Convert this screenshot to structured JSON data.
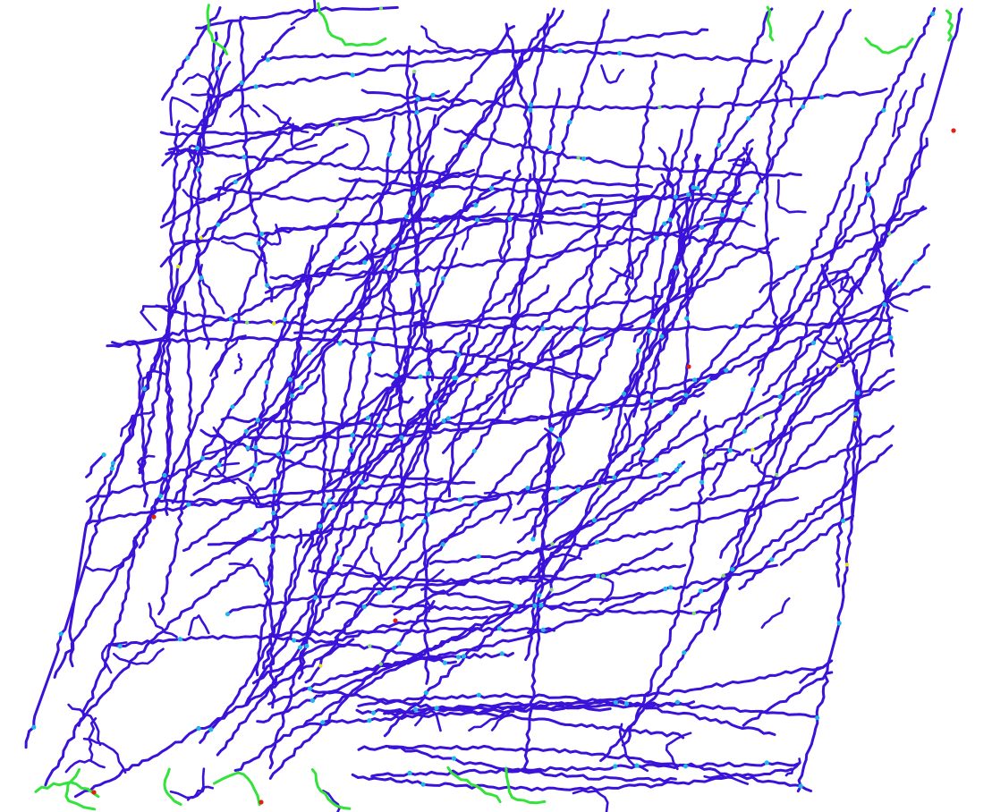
{
  "image": {
    "kind": "fiber-network-segmentation",
    "background_color": "#ffffff",
    "colors": {
      "fiber": "#3a12d8",
      "junction": "#1fb8e8",
      "junction_dense": "#7fe07a",
      "edge_fiber": "#33e23a",
      "hotspot_yellow": "#e6e61a",
      "hotspot_red": "#e02010"
    }
  }
}
